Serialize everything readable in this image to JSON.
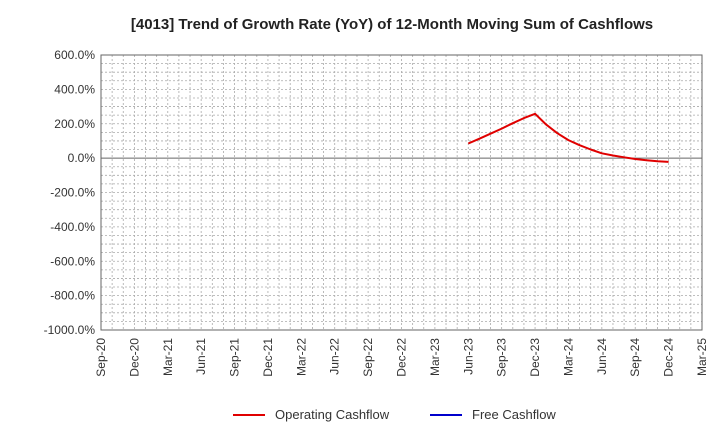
{
  "chart_data": {
    "type": "line",
    "title": "[4013]  Trend of Growth Rate (YoY) of 12-Month Moving Sum of Cashflows",
    "xlabel": "",
    "ylabel": "",
    "x": [
      "Sep-20",
      "Dec-20",
      "Mar-21",
      "Jun-21",
      "Sep-21",
      "Dec-21",
      "Mar-22",
      "Jun-22",
      "Sep-22",
      "Dec-22",
      "Mar-23",
      "Jun-23",
      "Sep-23",
      "Dec-23",
      "Mar-24",
      "Jun-24",
      "Sep-24",
      "Dec-24",
      "Mar-25"
    ],
    "x_tick_labels": [
      "Sep-20",
      "Dec-20",
      "Mar-21",
      "Jun-21",
      "Sep-21",
      "Dec-21",
      "Mar-22",
      "Jun-22",
      "Sep-22",
      "Dec-22",
      "Mar-23",
      "Jun-23",
      "Sep-23",
      "Dec-23",
      "Mar-24",
      "Jun-24",
      "Sep-24",
      "Dec-24",
      "Mar-25"
    ],
    "y_ticks": [
      600,
      400,
      200,
      0,
      -200,
      -400,
      -600,
      -800,
      -1000
    ],
    "y_tick_labels": [
      "600.0%",
      "400.0%",
      "200.0%",
      "0.0%",
      "-200.0%",
      "-400.0%",
      "-600.0%",
      "-800.0%",
      "-1000.0%"
    ],
    "ylim": [
      -1000,
      600
    ],
    "grid": true,
    "legend_position": "bottom",
    "series": [
      {
        "name": "Operating Cashflow",
        "color": "#e00000",
        "points": [
          {
            "x": "Jun-23",
            "y": 85
          },
          {
            "x": "Jul-23",
            "y": 113
          },
          {
            "x": "Aug-23",
            "y": 142
          },
          {
            "x": "Sep-23",
            "y": 172
          },
          {
            "x": "Oct-23",
            "y": 203
          },
          {
            "x": "Nov-23",
            "y": 233
          },
          {
            "x": "Dec-23",
            "y": 258
          },
          {
            "x": "Jan-24",
            "y": 195
          },
          {
            "x": "Feb-24",
            "y": 145
          },
          {
            "x": "Mar-24",
            "y": 105
          },
          {
            "x": "Apr-24",
            "y": 75
          },
          {
            "x": "May-24",
            "y": 50
          },
          {
            "x": "Jun-24",
            "y": 28
          },
          {
            "x": "Jul-24",
            "y": 15
          },
          {
            "x": "Aug-24",
            "y": 5
          },
          {
            "x": "Sep-24",
            "y": -5
          },
          {
            "x": "Oct-24",
            "y": -12
          },
          {
            "x": "Nov-24",
            "y": -18
          },
          {
            "x": "Dec-24",
            "y": -22
          }
        ]
      },
      {
        "name": "Free Cashflow",
        "color": "#0000cc",
        "points": []
      }
    ]
  }
}
